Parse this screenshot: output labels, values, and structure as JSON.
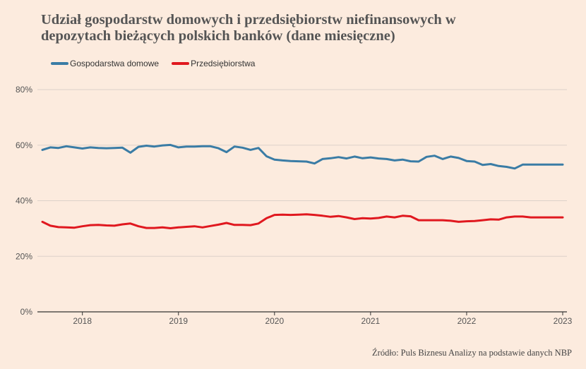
{
  "title_lines": [
    "Udział gospodarstw domowych i przedsiębiorstw niefinansowych w",
    "depozytach bieżących polskich banków (dane miesięczne)"
  ],
  "source": "Źródło: Puls Biznesu Analizy na podstawie danych NBP",
  "colors": {
    "households": "#3a7ca5",
    "enterprises": "#e0181f",
    "grid": "#dcd2c9",
    "background": "#fcebde"
  },
  "chart_data": {
    "type": "line",
    "x_tick_labels": [
      "2018",
      "2019",
      "2020",
      "2021",
      "2022",
      "2023"
    ],
    "y_tick_labels": [
      "0%",
      "20%",
      "40%",
      "60%",
      "80%"
    ],
    "ylim": [
      0,
      80
    ],
    "xlim": [
      "2017-08",
      "2023-01"
    ],
    "grid": true,
    "legend_position": "top-left",
    "x": [
      "2017-08",
      "2017-09",
      "2017-10",
      "2017-11",
      "2017-12",
      "2018-01",
      "2018-02",
      "2018-03",
      "2018-04",
      "2018-05",
      "2018-06",
      "2018-07",
      "2018-08",
      "2018-09",
      "2018-10",
      "2018-11",
      "2018-12",
      "2019-01",
      "2019-02",
      "2019-03",
      "2019-04",
      "2019-05",
      "2019-06",
      "2019-07",
      "2019-08",
      "2019-09",
      "2019-10",
      "2019-11",
      "2019-12",
      "2020-01",
      "2020-02",
      "2020-03",
      "2020-04",
      "2020-05",
      "2020-06",
      "2020-07",
      "2020-08",
      "2020-09",
      "2020-10",
      "2020-11",
      "2020-12",
      "2021-01",
      "2021-02",
      "2021-03",
      "2021-04",
      "2021-05",
      "2021-06",
      "2021-07",
      "2021-08",
      "2021-09",
      "2021-10",
      "2021-11",
      "2021-12",
      "2022-01",
      "2022-02",
      "2022-03",
      "2022-04",
      "2022-05",
      "2022-06",
      "2022-07",
      "2022-08",
      "2022-09",
      "2022-10",
      "2022-11",
      "2022-12",
      "2023-01"
    ],
    "series": [
      {
        "name": "Gospodarstwa domowe",
        "color": "#3a7ca5",
        "values": [
          58.3,
          59.2,
          59.0,
          59.6,
          59.2,
          58.8,
          59.2,
          59.0,
          58.9,
          59.0,
          59.1,
          57.3,
          59.4,
          59.8,
          59.5,
          59.9,
          60.1,
          59.2,
          59.5,
          59.5,
          59.6,
          59.6,
          58.9,
          57.5,
          59.5,
          59.1,
          58.3,
          59.0,
          56.0,
          54.8,
          54.5,
          54.3,
          54.2,
          54.1,
          53.4,
          55.0,
          55.3,
          55.7,
          55.2,
          55.9,
          55.3,
          55.6,
          55.2,
          55.0,
          54.5,
          54.8,
          54.2,
          54.1,
          55.8,
          56.2,
          55.0,
          55.9,
          55.4,
          54.3,
          54.1,
          52.9,
          53.2,
          52.5,
          52.2,
          51.6,
          53.0,
          53.0,
          53.0,
          53.0,
          53.0,
          53.0
        ]
      },
      {
        "name": "Przedsiębiorstwa",
        "color": "#e0181f",
        "values": [
          32.4,
          31.0,
          30.5,
          30.4,
          30.3,
          30.8,
          31.2,
          31.3,
          31.1,
          31.0,
          31.5,
          31.8,
          30.8,
          30.2,
          30.2,
          30.4,
          30.1,
          30.4,
          30.6,
          30.8,
          30.4,
          30.9,
          31.4,
          32.0,
          31.3,
          31.3,
          31.2,
          31.8,
          33.7,
          34.9,
          35.0,
          34.9,
          35.0,
          35.1,
          34.9,
          34.6,
          34.2,
          34.5,
          34.0,
          33.4,
          33.7,
          33.6,
          33.8,
          34.3,
          34.0,
          34.6,
          34.4,
          33.0,
          33.0,
          33.0,
          33.0,
          32.8,
          32.4,
          32.6,
          32.7,
          33.0,
          33.3,
          33.2,
          34.0,
          34.3,
          34.3,
          34.0,
          34.0,
          34.0,
          34.0,
          34.0
        ]
      }
    ]
  }
}
